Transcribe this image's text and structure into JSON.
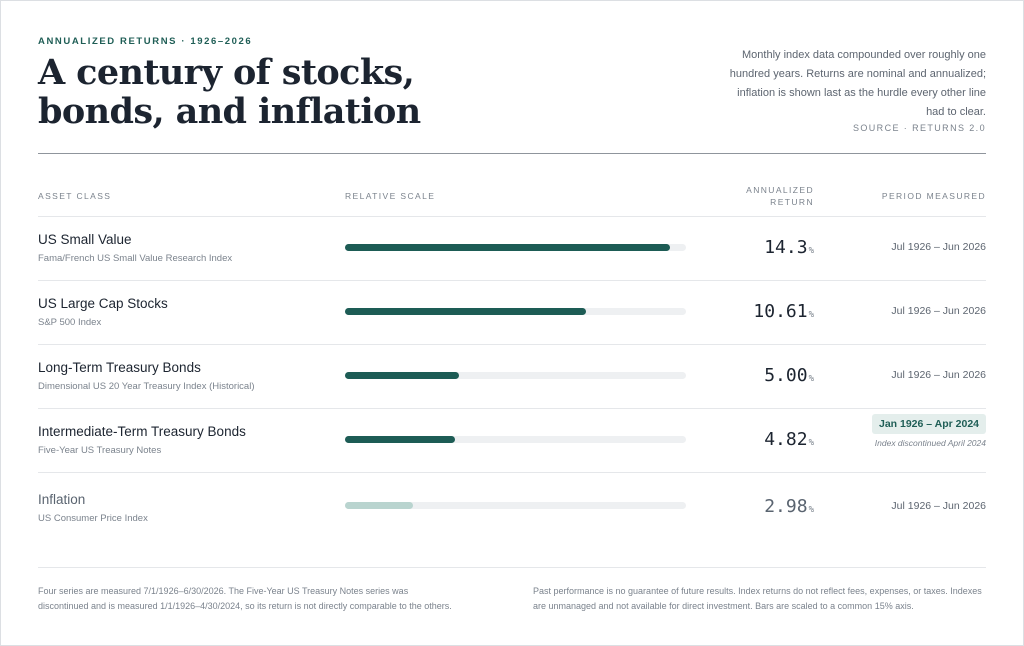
{
  "header": {
    "eyebrow": "ANNUALIZED RETURNS · 1926–2026",
    "title_line1": "A century of stocks,",
    "title_line2": "bonds, and inflation",
    "description": "Monthly index data compounded over roughly one hundred years. Returns are nominal and annualized; inflation is shown last as the hurdle every other line had to clear.",
    "source": "SOURCE · RETURNS 2.0"
  },
  "columns": {
    "asset": "ASSET CLASS",
    "scale": "RELATIVE SCALE",
    "return_line1": "ANNUALIZED",
    "return_line2": "RETURN",
    "period": "PERIOD MEASURED"
  },
  "colors": {
    "accent": "#1d5c55",
    "inflation_bar": "#b9d4cf",
    "track": "#eef0f2"
  },
  "chart_data": {
    "type": "bar",
    "orientation": "horizontal",
    "xlim": [
      0,
      15
    ],
    "unit": "%",
    "categories": [
      "US Small Value",
      "US Large Cap Stocks",
      "Long-Term Treasury Bonds",
      "Intermediate-Term Treasury Bonds",
      "Inflation"
    ],
    "rows": [
      {
        "name": "US Small Value",
        "index": "Fama/French US Small Value Research Index",
        "value": 14.3,
        "display": "14.3",
        "period": "Jul 1926 – Jun 2026"
      },
      {
        "name": "US Large Cap Stocks",
        "index": "S&P 500 Index",
        "value": 10.61,
        "display": "10.61",
        "period": "Jul 1926 – Jun 2026"
      },
      {
        "name": "Long-Term Treasury Bonds",
        "index": "Dimensional US 20 Year Treasury Index (Historical)",
        "value": 5.0,
        "display": "5.00",
        "period": "Jul 1926 – Jun 2026"
      },
      {
        "name": "Intermediate-Term Treasury Bonds",
        "index": "Five-Year US Treasury Notes",
        "value": 4.82,
        "display": "4.82",
        "period": "Jan 1926 – Apr 2024",
        "note": "Index discontinued April 2024"
      },
      {
        "name": "Inflation",
        "index": "US Consumer Price Index",
        "value": 2.98,
        "display": "2.98",
        "period": "Jul 1926 – Jun 2026"
      }
    ]
  },
  "footer": {
    "left": "Four series are measured 7/1/1926–6/30/2026. The Five-Year US Treasury Notes series was discontinued and is measured 1/1/1926–4/30/2024, so its return is not directly comparable to the others.",
    "right": "Past performance is no guarantee of future results. Index returns do not reflect fees, expenses, or taxes. Indexes are unmanaged and not available for direct investment. Bars are scaled to a common 15% axis."
  }
}
